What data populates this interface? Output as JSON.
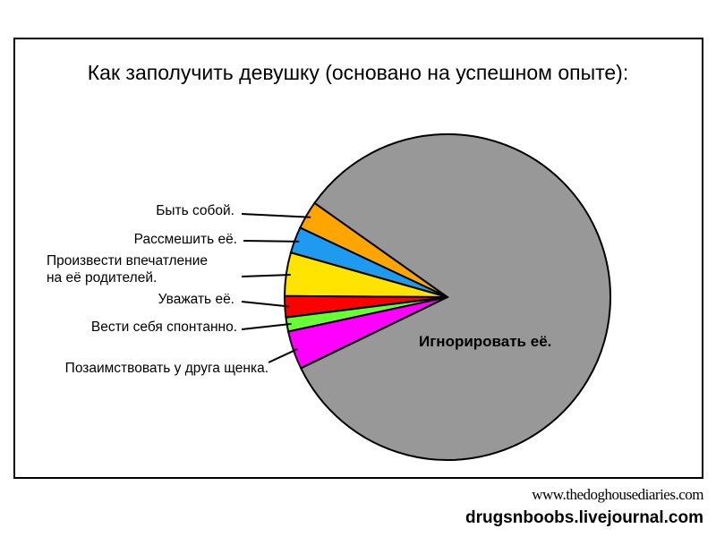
{
  "chart_data": {
    "type": "pie",
    "title": "Как заполучить девушку (основано на успешном опыте):",
    "slices": [
      {
        "label": "Быть собой.",
        "value": 2.8,
        "color": "#FFA500"
      },
      {
        "label": "Рассмешить её.",
        "value": 2.6,
        "color": "#1E9BF0"
      },
      {
        "label": "Произвести впечатление на её родителей.",
        "value": 4.3,
        "color": "#FFE400"
      },
      {
        "label": "Уважать её.",
        "value": 2.1,
        "color": "#FF0000"
      },
      {
        "label": "Вести себя спонтанно.",
        "value": 1.4,
        "color": "#66FF33"
      },
      {
        "label": "Позаимствовать у друга щенка.",
        "value": 3.8,
        "color": "#FF00FF"
      },
      {
        "label": "Игнорировать её.",
        "value": 83.0,
        "color": "#989898"
      }
    ],
    "start_angle_deg": 144.7,
    "label_lines": [
      "Произвести впечатление",
      "на её родителей."
    ]
  },
  "credits": {
    "site1": "www.thedoghousediaries.com",
    "site2": "drugsnboobs.livejournal.com"
  }
}
